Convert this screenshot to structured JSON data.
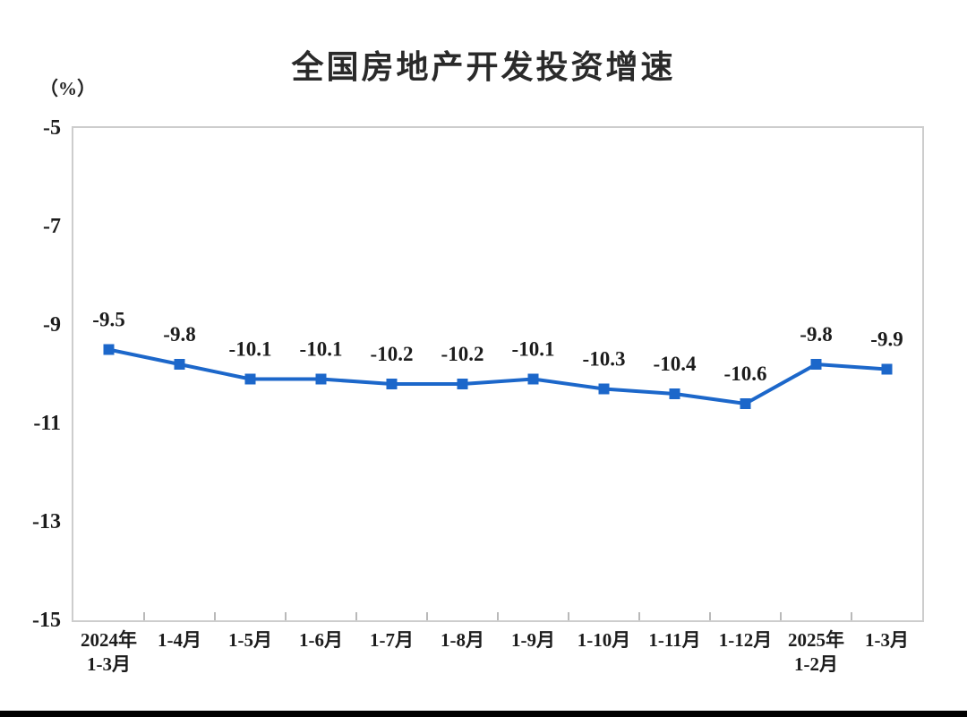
{
  "chart_data": {
    "type": "line",
    "title": "全国房地产开发投资增速",
    "unit": "（%）",
    "categories": [
      "2024年\n1-3月",
      "1-4月",
      "1-5月",
      "1-6月",
      "1-7月",
      "1-8月",
      "1-9月",
      "1-10月",
      "1-11月",
      "1-12月",
      "2025年\n1-2月",
      "1-3月"
    ],
    "values": [
      -9.5,
      -9.8,
      -10.1,
      -10.1,
      -10.2,
      -10.2,
      -10.1,
      -10.3,
      -10.4,
      -10.6,
      -9.8,
      -9.9
    ],
    "data_labels": [
      "-9.5",
      "-9.8",
      "-10.1",
      "-10.1",
      "-10.2",
      "-10.2",
      "-10.1",
      "-10.3",
      "-10.4",
      "-10.6",
      "-9.8",
      "-9.9"
    ],
    "ylim": [
      -15,
      -5
    ],
    "yticks": [
      "-5",
      "-7",
      "-9",
      "-11",
      "-13",
      "-15"
    ],
    "grid": false,
    "legend": false,
    "line_color": "#1c67ca",
    "marker": "square",
    "axis_border_color": "#cdcdcd",
    "tick_color": "#b9b9b9",
    "text_color": "#1c1c1c",
    "bottom_rule_color": "#000000"
  }
}
